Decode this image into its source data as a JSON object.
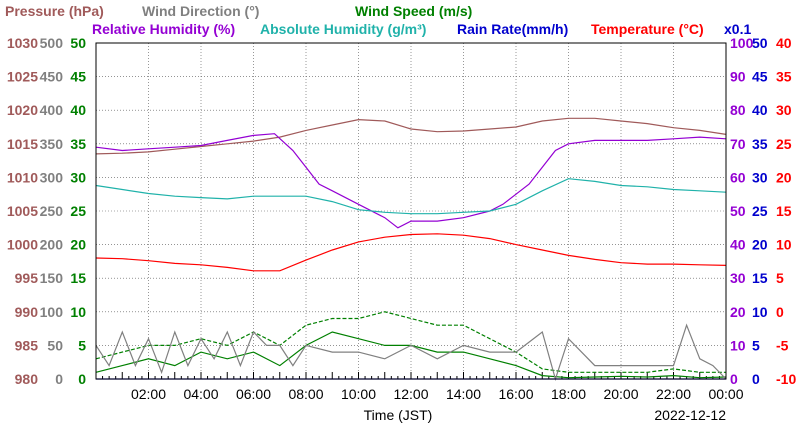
{
  "chart_data": {
    "type": "line",
    "date": "2022-12-12",
    "xlabel": "Time (JST)",
    "x_ticks": [
      "02:00",
      "04:00",
      "06:00",
      "08:00",
      "10:00",
      "12:00",
      "14:00",
      "16:00",
      "18:00",
      "20:00",
      "22:00",
      "00:00"
    ],
    "xlim": [
      "00:00",
      "24:00"
    ],
    "grid": true,
    "header_line1": [
      {
        "text": "Pressure (hPa)",
        "color": "#a05a5a"
      },
      {
        "text": "Wind Direction (°)",
        "color": "#808080"
      },
      {
        "text": "Wind Speed (m/s)",
        "color": "#008000"
      }
    ],
    "header_line2": [
      {
        "text": "Relative Humidity (%)",
        "color": "#9400d3"
      },
      {
        "text": "Absolute Humidity (g/m³)",
        "color": "#20b2aa"
      },
      {
        "text": "Rain Rate(mm/h)",
        "color": "#0000cd"
      },
      {
        "text": "Temperature (°C)",
        "color": "#ff0000"
      }
    ],
    "rain_multiplier_label": "x0.1",
    "axes": {
      "pressure": {
        "color": "#a05a5a",
        "ylim": [
          980,
          1030
        ],
        "ticks": [
          "1030",
          "1025",
          "1020",
          "1015",
          "1010",
          "1005",
          "1000",
          "995",
          "990",
          "985",
          "980"
        ]
      },
      "wind_direction": {
        "color": "#808080",
        "ylim": [
          0,
          500
        ],
        "ticks": [
          "500",
          "450",
          "400",
          "350",
          "300",
          "250",
          "200",
          "150",
          "100",
          "50",
          "0"
        ]
      },
      "wind_speed": {
        "color": "#008000",
        "ylim": [
          0,
          50
        ],
        "ticks": [
          "50",
          "45",
          "40",
          "35",
          "30",
          "25",
          "20",
          "15",
          "10",
          "5",
          "0"
        ]
      },
      "relative_humidity": {
        "color": "#9400d3",
        "ylim": [
          0,
          100
        ],
        "ticks": [
          "100",
          "90",
          "80",
          "70",
          "60",
          "50",
          "40",
          "30",
          "20",
          "10",
          "0"
        ]
      },
      "rain_rate": {
        "color": "#0000cd",
        "ylim": [
          0,
          50
        ],
        "ticks": [
          "50",
          "45",
          "40",
          "35",
          "30",
          "25",
          "20",
          "15",
          "10",
          "5",
          "0"
        ]
      },
      "temperature": {
        "color": "#ff0000",
        "ylim": [
          -10,
          40
        ],
        "ticks": [
          "40",
          "35",
          "30",
          "25",
          "20",
          "15",
          "10",
          "5",
          "0",
          "-5",
          "-10"
        ]
      }
    },
    "series": [
      {
        "name": "Pressure (hPa)",
        "axis": "pressure",
        "color": "#a05a5a",
        "x": [
          0,
          1,
          2,
          3,
          4,
          5,
          6,
          7,
          8,
          9,
          10,
          11,
          12,
          13,
          14,
          15,
          16,
          17,
          18,
          19,
          20,
          21,
          22,
          23,
          24
        ],
        "values": [
          1013.5,
          1013.6,
          1013.8,
          1014.2,
          1014.6,
          1015.0,
          1015.4,
          1016.0,
          1017.0,
          1017.8,
          1018.6,
          1018.4,
          1017.2,
          1016.8,
          1016.9,
          1017.2,
          1017.5,
          1018.4,
          1018.8,
          1018.8,
          1018.4,
          1018.0,
          1017.4,
          1017.0,
          1016.4
        ]
      },
      {
        "name": "Relative Humidity (%)",
        "axis": "relative_humidity",
        "color": "#9400d3",
        "x": [
          0,
          1,
          2,
          3,
          4,
          5,
          6,
          6.8,
          7.5,
          8,
          8.5,
          9,
          10,
          11,
          11.5,
          12,
          12.5,
          13,
          14,
          15,
          15.5,
          16,
          16.5,
          17,
          17.5,
          18,
          19,
          20,
          21,
          22,
          23,
          24
        ],
        "values": [
          69,
          68,
          68.5,
          69,
          69.5,
          71,
          72.5,
          73,
          68,
          63,
          58,
          56,
          52,
          48,
          45,
          47,
          47,
          47,
          48,
          50,
          52,
          55,
          58,
          63,
          68,
          70,
          71,
          71,
          71,
          71.5,
          72,
          71.5
        ]
      },
      {
        "name": "Absolute Humidity (g/m³)",
        "axis": "wind_speed",
        "color": "#20b2aa",
        "x": [
          0,
          1,
          2,
          3,
          4,
          5,
          6,
          7,
          8,
          9,
          10,
          11,
          12,
          13,
          14,
          15,
          16,
          17,
          18,
          19,
          20,
          21,
          22,
          23,
          24
        ],
        "values": [
          28.8,
          28.2,
          27.6,
          27.2,
          27.0,
          26.8,
          27.2,
          27.2,
          27.2,
          26.4,
          25.2,
          24.8,
          24.6,
          24.6,
          24.8,
          25.0,
          26.0,
          28.0,
          29.8,
          29.4,
          28.8,
          28.6,
          28.2,
          28.0,
          27.8
        ]
      },
      {
        "name": "Temperature (°C)",
        "axis": "temperature",
        "color": "#ff0000",
        "x": [
          0,
          1,
          2,
          3,
          4,
          5,
          6,
          7,
          8,
          9,
          10,
          11,
          12,
          13,
          14,
          15,
          16,
          17,
          18,
          19,
          20,
          21,
          22,
          23,
          24
        ],
        "values": [
          8.0,
          7.9,
          7.6,
          7.2,
          7.0,
          6.6,
          6.1,
          6.1,
          7.7,
          9.2,
          10.4,
          11.1,
          11.5,
          11.6,
          11.4,
          10.9,
          10.0,
          9.2,
          8.4,
          7.8,
          7.3,
          7.1,
          7.1,
          7.0,
          6.9
        ]
      },
      {
        "name": "Wind Speed (m/s)",
        "axis": "wind_speed",
        "color": "#008000",
        "x": [
          0,
          1,
          2,
          3,
          4,
          5,
          6,
          7,
          8,
          9,
          10,
          11,
          12,
          13,
          14,
          15,
          16,
          17,
          18,
          19,
          20,
          21,
          22,
          23,
          24
        ],
        "values": [
          1.0,
          2.0,
          3.0,
          2.0,
          4.0,
          3.0,
          4.0,
          2.0,
          5.0,
          7.0,
          6.0,
          5.0,
          5.0,
          4.0,
          4.0,
          3.0,
          2.0,
          0.5,
          0.2,
          0.3,
          0.4,
          0.3,
          0.5,
          0.2,
          0.3
        ]
      },
      {
        "name": "Wind Speed (m/s)",
        "axis": "wind_speed",
        "color": "#008000",
        "dashed": true,
        "x": [
          0,
          1,
          2,
          3,
          4,
          5,
          6,
          7,
          8,
          9,
          10,
          11,
          12,
          13,
          14,
          15,
          16,
          17,
          18,
          19,
          20,
          21,
          22,
          23,
          24
        ],
        "values": [
          3.0,
          4.0,
          5.0,
          5.0,
          6.0,
          5.0,
          7.0,
          5.0,
          8.0,
          9.0,
          9.0,
          10.0,
          9.0,
          8.0,
          8.0,
          6.0,
          4.0,
          1.5,
          1.0,
          1.0,
          1.0,
          1.0,
          1.5,
          1.0,
          1.0
        ]
      },
      {
        "name": "Wind Direction (°)",
        "axis": "wind_direction",
        "color": "#808080",
        "x": [
          0,
          0.5,
          1,
          1.5,
          2,
          2.5,
          3,
          3.5,
          4,
          4.5,
          5,
          5.5,
          6,
          6.5,
          7,
          7.5,
          8,
          9,
          10,
          11,
          12,
          13,
          14,
          15,
          16,
          17,
          17.5,
          18,
          19,
          20,
          21,
          22,
          22.5,
          23,
          23.5,
          24
        ],
        "values": [
          50,
          20,
          70,
          20,
          60,
          10,
          70,
          20,
          60,
          30,
          70,
          20,
          70,
          50,
          50,
          20,
          50,
          40,
          40,
          30,
          50,
          30,
          50,
          40,
          40,
          70,
          0,
          60,
          20,
          20,
          20,
          20,
          80,
          30,
          20,
          0
        ]
      },
      {
        "name": "Rain Rate(mm/h)",
        "axis": "rain_rate",
        "color": "#0000cd",
        "x": [
          0,
          24
        ],
        "values": [
          0,
          0
        ]
      }
    ]
  }
}
